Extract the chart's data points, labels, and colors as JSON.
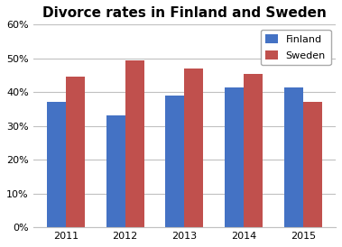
{
  "title": "Divorce rates in Finland and Sweden",
  "years": [
    "2011",
    "2012",
    "2013",
    "2014",
    "2015"
  ],
  "finland": [
    37,
    33,
    39,
    41.5,
    41.5
  ],
  "sweden": [
    44.5,
    49.5,
    47,
    45.5,
    37
  ],
  "finland_color": "#4472C4",
  "sweden_color": "#C0504D",
  "ylim": [
    0,
    60
  ],
  "yticks": [
    0,
    10,
    20,
    30,
    40,
    50,
    60
  ],
  "ytick_labels": [
    "0%",
    "10%",
    "20%",
    "30%",
    "40%",
    "50%",
    "60%"
  ],
  "legend_labels": [
    "Finland",
    "Sweden"
  ],
  "bar_width": 0.32,
  "title_fontsize": 11,
  "tick_fontsize": 8,
  "legend_fontsize": 8,
  "background_color": "#FFFFFF",
  "grid_color": "#C0C0C0"
}
